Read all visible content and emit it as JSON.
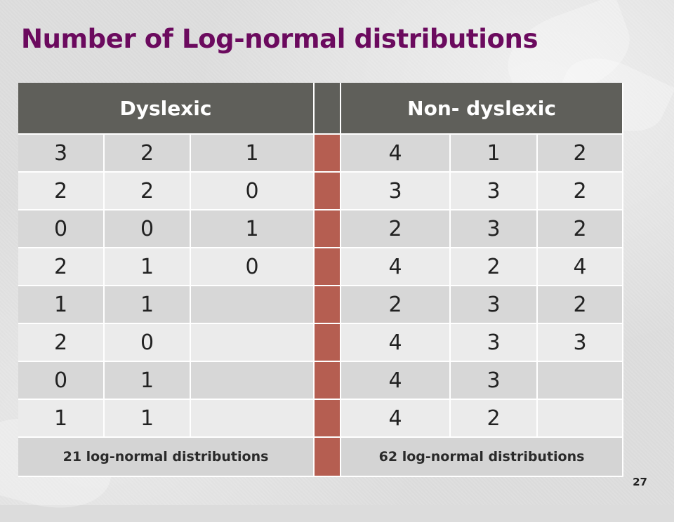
{
  "slide": {
    "title": "Number of Log-normal distributions",
    "page_number": "27"
  },
  "table": {
    "headers": {
      "dyslexic": "Dyslexic",
      "non_dyslexic": "Non- dyslexic"
    },
    "rows": [
      {
        "d": [
          "3",
          "2",
          "1"
        ],
        "n": [
          "4",
          "1",
          "2"
        ]
      },
      {
        "d": [
          "2",
          "2",
          "0"
        ],
        "n": [
          "3",
          "3",
          "2"
        ]
      },
      {
        "d": [
          "0",
          "0",
          "1"
        ],
        "n": [
          "2",
          "3",
          "2"
        ]
      },
      {
        "d": [
          "2",
          "1",
          "0"
        ],
        "n": [
          "4",
          "2",
          "4"
        ]
      },
      {
        "d": [
          "1",
          "1",
          ""
        ],
        "n": [
          "2",
          "3",
          "2"
        ]
      },
      {
        "d": [
          "2",
          "0",
          ""
        ],
        "n": [
          "4",
          "3",
          "3"
        ]
      },
      {
        "d": [
          "0",
          "1",
          ""
        ],
        "n": [
          "4",
          "3",
          ""
        ]
      },
      {
        "d": [
          "1",
          "1",
          ""
        ],
        "n": [
          "4",
          "2",
          ""
        ]
      }
    ],
    "totals": {
      "dyslexic": "21 log-normal distributions",
      "non_dyslexic": "62 log-normal distributions"
    }
  },
  "colors": {
    "title": "#6b0a5e",
    "header_bg": "#5f5f5a",
    "divider": "#b55e51",
    "row_dark": "#d7d7d7",
    "row_light": "#ebebeb"
  }
}
